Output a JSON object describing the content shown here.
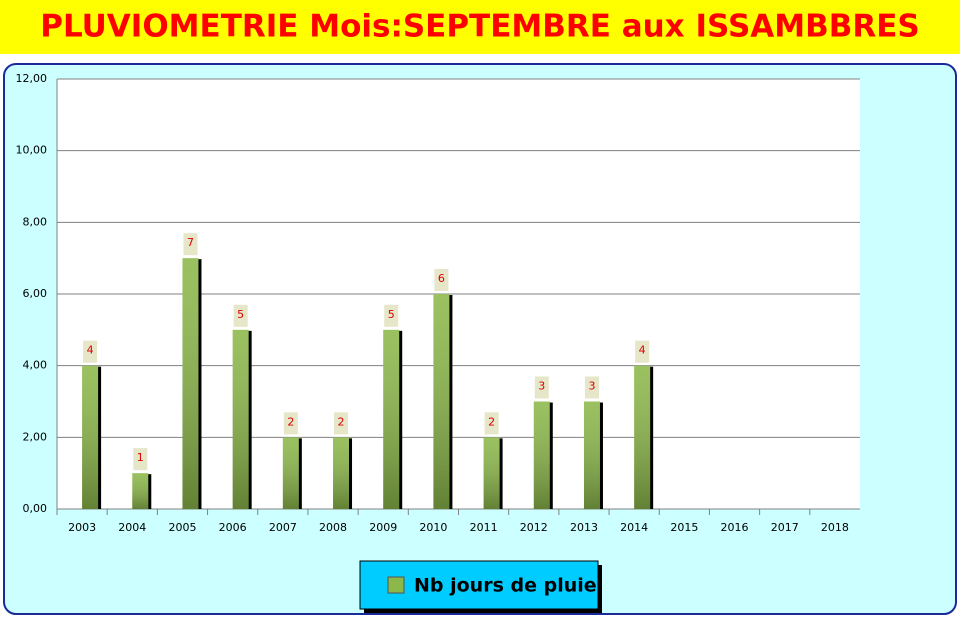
{
  "chart_data": {
    "type": "bar",
    "title": "PLUVIOMETRIE Mois:SEPTEMBRE aux ISSAMBBRES",
    "categories": [
      "2003",
      "2004",
      "2005",
      "2006",
      "2007",
      "2008",
      "2009",
      "2010",
      "2011",
      "2012",
      "2013",
      "2014",
      "2015",
      "2016",
      "2017",
      "2018"
    ],
    "series": [
      {
        "name": "Nb jours de pluie",
        "color": "#8cb84a",
        "values": [
          4,
          1,
          7,
          5,
          2,
          2,
          5,
          6,
          2,
          3,
          3,
          4,
          null,
          null,
          null,
          null
        ]
      }
    ],
    "ylim": [
      0,
      12
    ],
    "yticks": [
      {
        "value": 0,
        "label": "0,00"
      },
      {
        "value": 2,
        "label": "2,00"
      },
      {
        "value": 4,
        "label": "4,00"
      },
      {
        "value": 6,
        "label": "6,00"
      },
      {
        "value": 8,
        "label": "8,00"
      },
      {
        "value": 10,
        "label": "10,00"
      },
      {
        "value": 12,
        "label": "12,00"
      }
    ],
    "grid": true
  }
}
